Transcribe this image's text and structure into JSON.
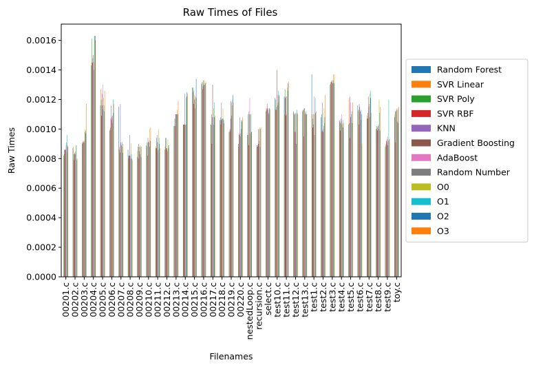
{
  "chart_data": {
    "type": "bar",
    "title": "Raw Times of Files",
    "xlabel": "Filenames",
    "ylabel": "Raw Times",
    "ylim": [
      0,
      0.00171
    ],
    "yticks": [
      0.0,
      0.0002,
      0.0004,
      0.0006,
      0.0008,
      0.001,
      0.0012,
      0.0014,
      0.0016
    ],
    "ytick_labels": [
      "0.0000",
      "0.0002",
      "0.0004",
      "0.0006",
      "0.0008",
      "0.0010",
      "0.0012",
      "0.0014",
      "0.0016"
    ],
    "grid": false,
    "legend_position": "center-right outside",
    "categories": [
      "00201.c",
      "00202.c",
      "00203.c",
      "00204.c",
      "00205.c",
      "00206.c",
      "00207.c",
      "00208.c",
      "00209.c",
      "00210.c",
      "00211.c",
      "00212.c",
      "00213.c",
      "00214.c",
      "00215.c",
      "00216.c",
      "00217.c",
      "00218.c",
      "00219.c",
      "00220.c",
      "nestedLoop.c",
      "recursion.c",
      "select.c",
      "test10.c",
      "test11.c",
      "test12.c",
      "test13.c",
      "test1.c",
      "test2.c",
      "test3.c",
      "test4.c",
      "test5.c",
      "test6.c",
      "test7.c",
      "test8.c",
      "test9.c",
      "toy.c"
    ],
    "series": [
      {
        "name": "Random Forest",
        "color": "#1f77b4",
        "values": [
          0.00082,
          0.00087,
          0.0009,
          0.00143,
          0.00116,
          0.00099,
          0.00115,
          0.00086,
          0.00081,
          0.00089,
          0.00087,
          0.00086,
          0.00102,
          0.00103,
          0.00128,
          0.00131,
          0.00103,
          0.00106,
          0.00098,
          0.0009,
          0.00096,
          0.00089,
          0.00112,
          0.00121,
          0.00122,
          0.00112,
          0.00112,
          0.00137,
          0.00108,
          0.0013,
          0.00106,
          0.00103,
          0.00116,
          0.00107,
          0.001,
          0.00088,
          0.00108
        ]
      },
      {
        "name": "SVR Linear",
        "color": "#ff7f0e",
        "values": [
          0.00083,
          0.00088,
          0.00091,
          0.00145,
          0.00127,
          0.001,
          0.00088,
          0.0008,
          0.00085,
          0.00088,
          0.00088,
          0.00088,
          0.00102,
          0.00103,
          0.00125,
          0.0013,
          0.00103,
          0.00103,
          0.00098,
          0.00088,
          0.00096,
          0.00088,
          0.00114,
          0.00113,
          0.0011,
          0.00111,
          0.00113,
          0.0011,
          0.00098,
          0.00132,
          0.00105,
          0.00121,
          0.00112,
          0.00109,
          0.001,
          0.00089,
          0.0011
        ]
      },
      {
        "name": "SVR Poly",
        "color": "#2ca02c",
        "values": [
          0.00086,
          0.00083,
          0.00091,
          0.00161,
          0.0012,
          0.00101,
          0.00086,
          0.00082,
          0.00088,
          0.00091,
          0.00094,
          0.00094,
          0.00107,
          0.00103,
          0.00128,
          0.00132,
          0.0011,
          0.00108,
          0.001,
          0.00096,
          0.0011,
          0.00088,
          0.00113,
          0.0012,
          0.00127,
          0.0011,
          0.00113,
          0.00107,
          0.0011,
          0.00131,
          0.00104,
          0.00104,
          0.00113,
          0.00111,
          0.00102,
          0.0009,
          0.00112
        ]
      },
      {
        "name": "SVR RBF",
        "color": "#d62728",
        "values": [
          0.00086,
          0.00079,
          0.00092,
          0.00145,
          0.00109,
          0.00107,
          0.00084,
          0.00082,
          0.0008,
          0.00082,
          0.00087,
          0.00087,
          0.00102,
          0.00103,
          0.00117,
          0.00127,
          0.0009,
          0.00106,
          0.00099,
          0.00097,
          0.00089,
          0.00089,
          0.00114,
          0.00113,
          0.00121,
          0.00098,
          0.00095,
          0.00101,
          0.00099,
          0.00132,
          0.00099,
          0.00094,
          0.00103,
          0.00107,
          0.00099,
          0.00092,
          0.00091
        ]
      },
      {
        "name": "KNN",
        "color": "#9467bd",
        "values": [
          0.00086,
          0.00083,
          0.00091,
          0.00148,
          0.00124,
          0.00116,
          0.00117,
          0.00096,
          0.0009,
          0.00094,
          0.00096,
          0.00094,
          0.0011,
          0.00124,
          0.00126,
          0.00129,
          0.00108,
          0.00118,
          0.00107,
          0.00108,
          0.00112,
          0.001,
          0.00117,
          0.00115,
          0.00122,
          0.0011,
          0.00114,
          0.00103,
          0.00118,
          0.00132,
          0.00107,
          0.00122,
          0.00117,
          0.00122,
          0.00101,
          0.00091,
          0.00112
        ]
      },
      {
        "name": "Gradient Boosting",
        "color": "#8c564b",
        "values": [
          0.00086,
          0.00084,
          0.00091,
          0.0015,
          0.00116,
          0.00108,
          0.00091,
          0.00082,
          0.00088,
          0.00091,
          0.00091,
          0.00087,
          0.0011,
          0.00103,
          0.0012,
          0.00133,
          0.0013,
          0.00107,
          0.00119,
          0.00095,
          0.0011,
          0.0009,
          0.00113,
          0.0014,
          0.00109,
          0.00111,
          0.00114,
          0.0011,
          0.00098,
          0.00133,
          0.00105,
          0.00108,
          0.00115,
          0.00115,
          0.00102,
          0.00093,
          0.00113
        ]
      },
      {
        "name": "AdaBoost",
        "color": "#e377c2",
        "values": [
          0.00089,
          0.00083,
          0.00092,
          0.00145,
          0.0013,
          0.00106,
          0.0009,
          0.00082,
          0.00085,
          0.00092,
          0.00085,
          0.00086,
          0.0011,
          0.00103,
          0.00123,
          0.00131,
          0.00108,
          0.00107,
          0.00118,
          0.00097,
          0.00121,
          0.00092,
          0.00114,
          0.00123,
          0.0011,
          0.00098,
          0.00111,
          0.00122,
          0.001,
          0.00131,
          0.0011,
          0.00118,
          0.00112,
          0.00117,
          0.00103,
          0.00095,
          0.00114
        ]
      },
      {
        "name": "Random Number",
        "color": "#7f7f7f",
        "values": [
          0.00091,
          0.00085,
          0.00098,
          0.0014,
          0.00113,
          0.00109,
          0.00089,
          0.0008,
          0.00083,
          0.00091,
          0.00086,
          0.00085,
          0.0011,
          0.00103,
          0.00114,
          0.0013,
          0.00103,
          0.00107,
          0.00109,
          0.001,
          0.00097,
          0.001,
          0.00111,
          0.00116,
          0.00122,
          0.0009,
          0.0011,
          0.00096,
          0.00102,
          0.00131,
          0.00103,
          0.0011,
          0.00112,
          0.00108,
          0.001,
          0.00089,
          0.00105
        ]
      },
      {
        "name": "O0",
        "color": "#bcbd22",
        "values": [
          0.00084,
          0.00089,
          0.001,
          0.00163,
          0.00121,
          0.00104,
          0.00088,
          0.0009,
          0.00089,
          0.001,
          0.001,
          0.00093,
          0.00113,
          0.00121,
          0.00122,
          0.00133,
          0.00114,
          0.00114,
          0.00116,
          0.00106,
          0.0011,
          0.00101,
          0.0011,
          0.00118,
          0.00128,
          0.0011,
          0.00111,
          0.0011,
          0.00114,
          0.00137,
          0.00104,
          0.00104,
          0.00106,
          0.00124,
          0.0012,
          0.00092,
          0.00113
        ]
      },
      {
        "name": "O1",
        "color": "#17becf",
        "values": [
          0.00096,
          0.00089,
          0.00099,
          0.00163,
          0.00116,
          0.0012,
          0.00091,
          0.00083,
          0.00088,
          0.00088,
          0.00094,
          0.00089,
          0.0011,
          0.00122,
          0.00121,
          0.0013,
          0.00118,
          0.00107,
          0.0012,
          0.00105,
          0.0011,
          0.00088,
          0.00114,
          0.00126,
          0.00126,
          0.00113,
          0.00112,
          0.00121,
          0.00104,
          0.00133,
          0.00106,
          0.00112,
          0.00113,
          0.00126,
          0.00111,
          0.0012,
          0.00114
        ]
      },
      {
        "name": "O2",
        "color": "#1f77b4",
        "values": [
          0.00088,
          0.00079,
          0.00097,
          0.00163,
          0.00112,
          0.00111,
          0.00084,
          0.0008,
          0.00081,
          0.00092,
          0.0009,
          0.00087,
          0.0011,
          0.00125,
          0.00134,
          0.00131,
          0.00108,
          0.00106,
          0.00123,
          0.00106,
          0.00098,
          0.001,
          0.00114,
          0.00123,
          0.00131,
          0.00111,
          0.0011,
          0.00111,
          0.00108,
          0.00131,
          0.00101,
          0.00104,
          0.0011,
          0.00121,
          0.00099,
          0.00093,
          0.00104
        ]
      },
      {
        "name": "O3",
        "color": "#ff7f0e",
        "values": [
          0.00089,
          0.0008,
          0.00117,
          0.0016,
          0.00126,
          0.00117,
          0.0009,
          0.00079,
          0.00088,
          0.00101,
          0.00087,
          0.00089,
          0.00119,
          0.00124,
          0.00121,
          0.00132,
          0.00109,
          0.00104,
          0.00118,
          0.00108,
          0.00098,
          0.00101,
          0.00113,
          0.00122,
          0.00132,
          0.0011,
          0.0011,
          0.00112,
          0.00123,
          0.00137,
          0.00104,
          0.00118,
          0.0009,
          0.00111,
          0.00115,
          0.00093,
          0.00115
        ]
      }
    ]
  }
}
